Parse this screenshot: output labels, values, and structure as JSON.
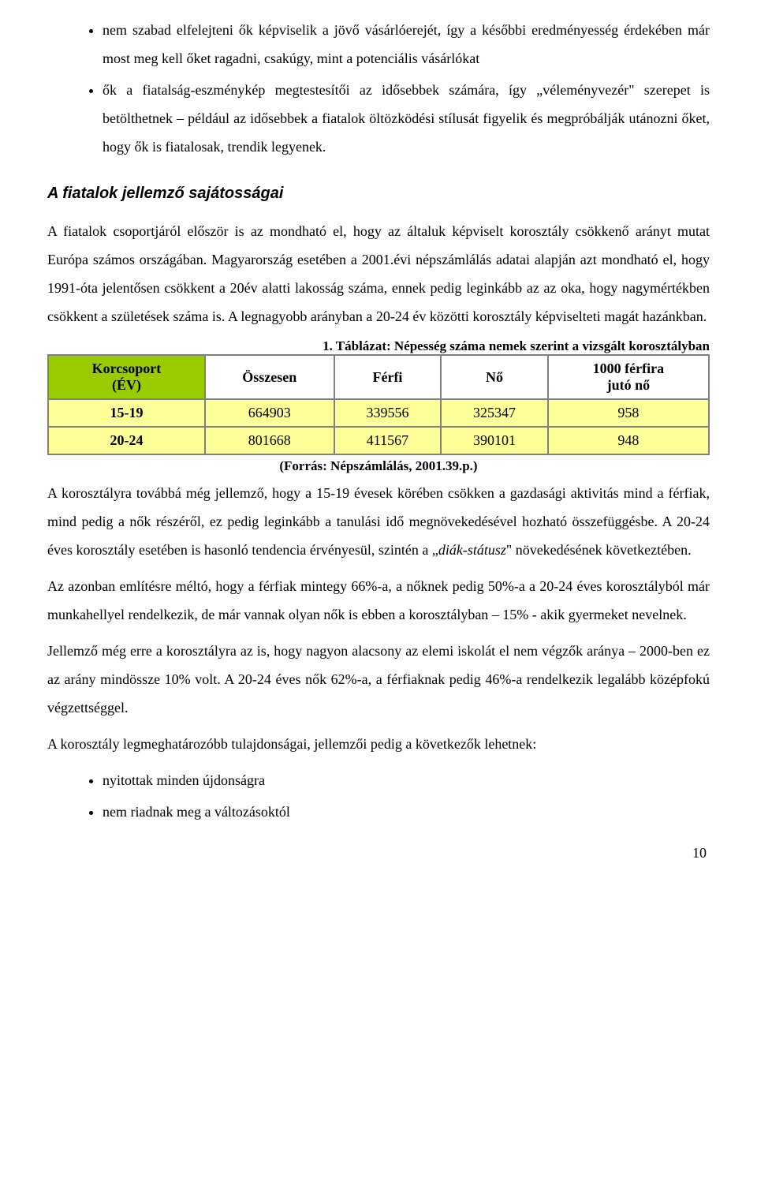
{
  "bullets_top": [
    "nem szabad elfelejteni ők képviselik a jövő vásárlóerejét, így a későbbi eredményesség érdekében már most meg kell őket ragadni, csakúgy, mint a potenciális vásárlókat",
    "ők a fiatalság-eszménykép megtestesítői az idősebbek számára, így „véleményvezér\" szerepet is betölthetnek – például az idősebbek a fiatalok öltözködési stílusát figyelik és megpróbálják utánozni őket, hogy ők is fiatalosak, trendik legyenek."
  ],
  "section_heading": "A fiatalok jellemző sajátosságai",
  "para1": "A fiatalok csoportjáról először is az mondható el, hogy az általuk képviselt korosztály csökkenő arányt mutat Európa számos országában. Magyarország esetében a 2001.évi népszámlálás adatai alapján azt mondható el, hogy 1991-óta jelentősen csökkent a 20év alatti lakosság száma, ennek pedig leginkább az az oka, hogy nagymértékben csökkent a születések száma is. A legnagyobb arányban a 20-24 év közötti korosztály képviselteti magát hazánkban.",
  "table_caption": "1. Táblázat: Népesség száma nemek szerint a vizsgált korosztályban",
  "table": {
    "headers": {
      "col0_line1": "Korcsoport",
      "col0_line2": "(ÉV)",
      "col1": "Összesen",
      "col2": "Férfi",
      "col3": "Nő",
      "col4_line1": "1000 férfira",
      "col4_line2": "jutó nő"
    },
    "rows": [
      {
        "age": "15-19",
        "total": "664903",
        "male": "339556",
        "female": "325347",
        "ratio": "958"
      },
      {
        "age": "20-24",
        "total": "801668",
        "male": "411567",
        "female": "390101",
        "ratio": "948"
      }
    ]
  },
  "table_source": "(Forrás: Népszámlálás, 2001.39.p.)",
  "para2_a": "A korosztályra továbbá még jellemző, hogy a 15-19 évesek körében csökken a gazdasági aktivitás mind a férfiak, mind pedig a nők részéről, ez pedig leginkább a tanulási idő megnövekedésével hozható összefüggésbe. A 20-24 éves korosztály esetében is hasonló tendencia érvényesül, szintén a „",
  "para2_italic": "diák-státusz",
  "para2_b": "\" növekedésének következtében.",
  "para3": "Az azonban említésre méltó, hogy a férfiak mintegy 66%-a, a nőknek pedig 50%-a a 20-24 éves korosztályból már munkahellyel rendelkezik, de már vannak olyan nők is ebben a korosztályban – 15% - akik gyermeket nevelnek.",
  "para4": "Jellemző még erre a korosztályra az is, hogy nagyon alacsony az elemi iskolát el nem végzők aránya – 2000-ben ez az arány mindössze 10% volt. A 20-24 éves nők 62%-a, a férfiaknak pedig 46%-a rendelkezik legalább középfokú végzettséggel.",
  "para5": "A korosztály legmeghatározóbb tulajdonságai, jellemzői pedig a következők lehetnek:",
  "bullets_bottom": [
    "nyitottak minden újdonságra",
    "nem riadnak meg a változásoktól"
  ],
  "page_number": "10"
}
